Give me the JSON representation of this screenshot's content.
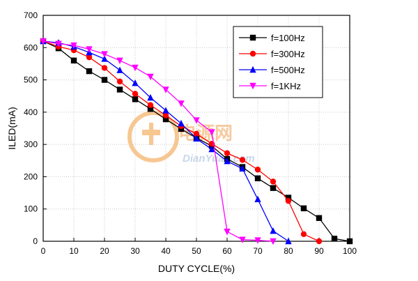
{
  "chart_data": {
    "type": "line",
    "xlabel": "DUTY CYCLE(%)",
    "ylabel": "ILED(mA)",
    "xlim": [
      0,
      100
    ],
    "ylim": [
      0,
      700
    ],
    "x_ticks": [
      0,
      10,
      20,
      30,
      40,
      50,
      60,
      70,
      80,
      90,
      100
    ],
    "y_ticks": [
      0,
      100,
      200,
      300,
      400,
      500,
      600,
      700
    ],
    "grid": true,
    "legend_position": "top-right",
    "series": [
      {
        "name": "f=100Hz",
        "color": "#000000",
        "marker": "square",
        "x": [
          0,
          5,
          10,
          15,
          20,
          25,
          30,
          35,
          40,
          45,
          50,
          55,
          60,
          65,
          70,
          75,
          80,
          85,
          90,
          95,
          100
        ],
        "y": [
          620,
          598,
          560,
          527,
          500,
          470,
          440,
          410,
          378,
          348,
          320,
          295,
          255,
          230,
          195,
          165,
          135,
          102,
          72,
          8,
          0
        ]
      },
      {
        "name": "f=300Hz",
        "color": "#ff0000",
        "marker": "circle",
        "x": [
          0,
          5,
          10,
          15,
          20,
          25,
          30,
          35,
          40,
          45,
          50,
          55,
          60,
          65,
          70,
          75,
          80,
          85,
          90
        ],
        "y": [
          620,
          603,
          592,
          570,
          537,
          495,
          457,
          422,
          390,
          357,
          333,
          302,
          273,
          252,
          222,
          185,
          125,
          22,
          0
        ]
      },
      {
        "name": "f=500Hz",
        "color": "#0000ff",
        "marker": "triangle-up",
        "x": [
          0,
          5,
          10,
          15,
          20,
          25,
          30,
          35,
          40,
          45,
          50,
          55,
          60,
          65,
          70,
          75,
          80
        ],
        "y": [
          620,
          615,
          603,
          585,
          565,
          530,
          490,
          445,
          405,
          365,
          318,
          285,
          248,
          225,
          130,
          32,
          0
        ]
      },
      {
        "name": "f=1KHz",
        "color": "#ff00ff",
        "marker": "triangle-down",
        "x": [
          0,
          5,
          10,
          15,
          20,
          25,
          30,
          35,
          40,
          45,
          50,
          55,
          60,
          65,
          70,
          75
        ],
        "y": [
          620,
          612,
          607,
          595,
          580,
          560,
          538,
          510,
          470,
          427,
          375,
          338,
          30,
          5,
          3,
          0
        ]
      }
    ]
  },
  "watermark": {
    "brand": "电源网",
    "url": "DianYuan.com"
  }
}
